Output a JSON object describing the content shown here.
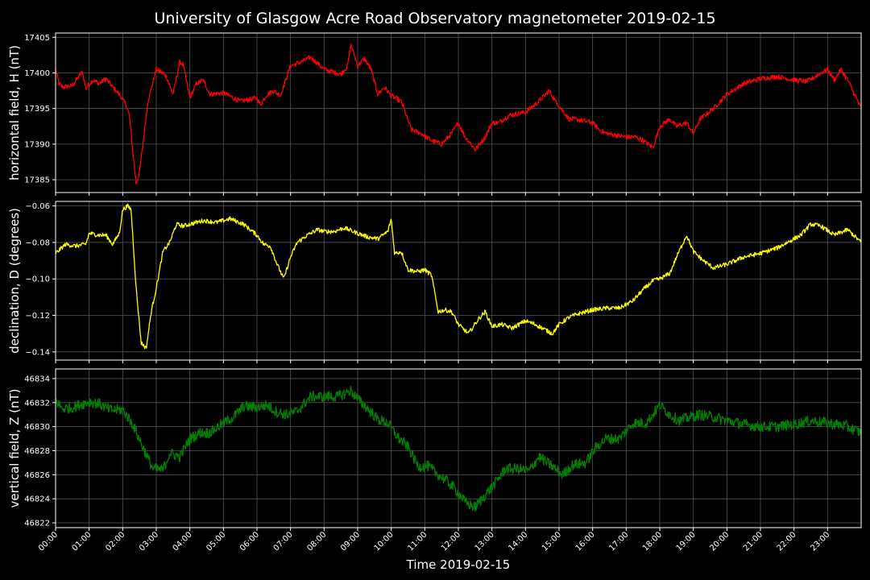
{
  "chart_data": {
    "type": "line",
    "title": "University of Glasgow Acre Road Observatory magnetometer 2019-02-15",
    "xlabel": "Time 2019-02-15",
    "x_unit": "hours since 00:00",
    "xlim": [
      0,
      24
    ],
    "x_tick_labels": [
      "00:00",
      "01:00",
      "02:00",
      "03:00",
      "04:00",
      "05:00",
      "06:00",
      "07:00",
      "08:00",
      "09:00",
      "10:00",
      "11:00",
      "12:00",
      "13:00",
      "14:00",
      "15:00",
      "16:00",
      "17:00",
      "18:00",
      "19:00",
      "20:00",
      "21:00",
      "22:00",
      "23:00"
    ],
    "grid": true,
    "panels": [
      {
        "key": "h",
        "ylabel": "horizontal field, H (nT)",
        "color": "#ff0000",
        "ylim": [
          17383.2,
          17405.6
        ],
        "yticks": [
          17385,
          17390,
          17395,
          17400,
          17405
        ],
        "ytick_labels": [
          "17385",
          "17390",
          "17395",
          "17400",
          "17405"
        ],
        "noise": 0.35,
        "series": {
          "x": [
            0,
            0.1,
            0.2,
            0.5,
            0.8,
            0.9,
            1.1,
            1.3,
            1.5,
            1.7,
            1.9,
            2.1,
            2.2,
            2.3,
            2.4,
            2.5,
            2.6,
            2.75,
            3.0,
            3.2,
            3.3,
            3.5,
            3.7,
            3.8,
            4.0,
            4.2,
            4.4,
            4.6,
            5.0,
            5.5,
            6.0,
            6.1,
            6.3,
            6.5,
            6.7,
            7.0,
            7.3,
            7.6,
            8.0,
            8.5,
            8.7,
            8.8,
            9.0,
            9.2,
            9.4,
            9.6,
            9.8,
            10.0,
            10.3,
            10.6,
            10.9,
            11.2,
            11.5,
            11.8,
            12.0,
            12.2,
            12.3,
            12.5,
            12.8,
            13.0,
            13.2,
            13.5,
            14.0,
            14.4,
            14.7,
            14.9,
            15.3,
            15.5,
            16.0,
            16.2,
            16.4,
            17.0,
            17.3,
            17.5,
            17.8,
            18.0,
            18.3,
            18.5,
            18.8,
            19.0,
            19.2,
            19.6,
            20.0,
            20.5,
            21.0,
            21.5,
            22.0,
            22.4,
            22.8,
            23.0,
            23.2,
            23.4,
            23.6,
            23.8,
            24.0
          ],
          "y": [
            17400.5,
            17398.5,
            17398.0,
            17398.2,
            17400.2,
            17397.8,
            17399.0,
            17398.5,
            17399.2,
            17398.0,
            17397.0,
            17395.5,
            17394.0,
            17389.0,
            17384.5,
            17386.0,
            17390.0,
            17396.0,
            17400.5,
            17400.0,
            17399.5,
            17397.0,
            17401.5,
            17401.2,
            17396.5,
            17398.5,
            17399.0,
            17397.0,
            17397.2,
            17396.0,
            17396.5,
            17395.5,
            17397.0,
            17397.5,
            17396.8,
            17401.0,
            17401.5,
            17402.2,
            17400.5,
            17399.8,
            17401.0,
            17404.0,
            17401.0,
            17402.0,
            17400.5,
            17397.0,
            17398.0,
            17396.8,
            17396.0,
            17392.0,
            17391.5,
            17390.5,
            17390.0,
            17391.5,
            17393.0,
            17391.0,
            17390.5,
            17389.2,
            17391.0,
            17393.0,
            17393.0,
            17394.0,
            17394.5,
            17396.0,
            17397.5,
            17396.0,
            17393.5,
            17393.5,
            17393.0,
            17392.0,
            17391.5,
            17391.0,
            17391.0,
            17390.5,
            17389.5,
            17392.5,
            17393.5,
            17392.5,
            17393.0,
            17391.5,
            17393.5,
            17395.0,
            17397.0,
            17398.5,
            17399.2,
            17399.5,
            17399.0,
            17398.8,
            17400.0,
            17400.5,
            17399.0,
            17400.5,
            17399.0,
            17397.0,
            17395.0
          ]
        }
      },
      {
        "key": "d",
        "ylabel": "declination, D (degrees)",
        "color": "#ffff00",
        "ylim": [
          -0.1445,
          -0.0575
        ],
        "yticks": [
          -0.14,
          -0.12,
          -0.1,
          -0.08,
          -0.06
        ],
        "ytick_labels": [
          "−0.14",
          "−0.12",
          "−0.10",
          "−0.08",
          "−0.06"
        ],
        "noise": 0.0012,
        "series": {
          "x": [
            0,
            0.3,
            0.6,
            0.9,
            1.0,
            1.3,
            1.5,
            1.7,
            1.9,
            2.0,
            2.15,
            2.25,
            2.4,
            2.55,
            2.7,
            2.85,
            3.0,
            3.2,
            3.4,
            3.6,
            3.8,
            4.0,
            4.4,
            4.8,
            5.2,
            5.6,
            6.0,
            6.2,
            6.4,
            6.6,
            6.8,
            7.0,
            7.2,
            7.5,
            7.8,
            8.0,
            8.3,
            8.6,
            9.0,
            9.3,
            9.6,
            9.9,
            10.0,
            10.1,
            10.3,
            10.5,
            10.8,
            11.0,
            11.2,
            11.4,
            11.6,
            11.8,
            12.0,
            12.3,
            12.6,
            12.8,
            13.0,
            13.3,
            13.6,
            14.0,
            14.3,
            14.6,
            14.8,
            15.0,
            15.3,
            15.6,
            16.0,
            16.4,
            16.8,
            17.2,
            17.5,
            17.8,
            18.0,
            18.3,
            18.5,
            18.8,
            19.0,
            19.3,
            19.6,
            20.0,
            20.5,
            21.0,
            21.5,
            22.0,
            22.2,
            22.5,
            22.8,
            23.2,
            23.6,
            24.0
          ],
          "y": [
            -0.086,
            -0.081,
            -0.082,
            -0.081,
            -0.075,
            -0.076,
            -0.076,
            -0.081,
            -0.075,
            -0.062,
            -0.06,
            -0.062,
            -0.105,
            -0.135,
            -0.138,
            -0.118,
            -0.105,
            -0.085,
            -0.08,
            -0.07,
            -0.071,
            -0.07,
            -0.068,
            -0.069,
            -0.067,
            -0.07,
            -0.076,
            -0.081,
            -0.082,
            -0.092,
            -0.1,
            -0.088,
            -0.08,
            -0.076,
            -0.073,
            -0.074,
            -0.074,
            -0.072,
            -0.075,
            -0.077,
            -0.078,
            -0.074,
            -0.067,
            -0.086,
            -0.085,
            -0.095,
            -0.096,
            -0.095,
            -0.098,
            -0.118,
            -0.117,
            -0.118,
            -0.125,
            -0.13,
            -0.122,
            -0.118,
            -0.126,
            -0.125,
            -0.127,
            -0.123,
            -0.125,
            -0.128,
            -0.13,
            -0.125,
            -0.121,
            -0.119,
            -0.117,
            -0.116,
            -0.116,
            -0.112,
            -0.106,
            -0.101,
            -0.1,
            -0.097,
            -0.088,
            -0.076,
            -0.085,
            -0.09,
            -0.094,
            -0.092,
            -0.088,
            -0.086,
            -0.083,
            -0.078,
            -0.076,
            -0.07,
            -0.071,
            -0.076,
            -0.073,
            -0.08
          ]
        }
      },
      {
        "key": "z",
        "ylabel": "vertical field, Z (nT)",
        "color": "#008000",
        "ylim": [
          46821.6,
          46834.8
        ],
        "yticks": [
          46822,
          46824,
          46826,
          46828,
          46830,
          46832,
          46834
        ],
        "ytick_labels": [
          "46822",
          "46824",
          "46826",
          "46828",
          "46830",
          "46832",
          "46834"
        ],
        "noise": 0.45,
        "series": {
          "x": [
            0,
            0.2,
            0.5,
            1.0,
            1.3,
            1.6,
            2.0,
            2.3,
            2.6,
            2.9,
            3.2,
            3.4,
            3.7,
            4.0,
            4.3,
            4.6,
            5.0,
            5.3,
            5.6,
            6.0,
            6.3,
            6.6,
            6.9,
            7.2,
            7.6,
            8.0,
            8.4,
            8.8,
            9.0,
            9.3,
            9.6,
            9.9,
            10.2,
            10.5,
            10.8,
            11.1,
            11.4,
            11.7,
            12.0,
            12.2,
            12.5,
            12.8,
            13.1,
            13.4,
            13.8,
            14.1,
            14.4,
            14.8,
            15.1,
            15.4,
            15.8,
            16.1,
            16.4,
            16.8,
            17.2,
            17.6,
            18.0,
            18.3,
            18.6,
            18.9,
            19.2,
            19.6,
            20.0,
            20.5,
            21.0,
            21.5,
            22.0,
            22.5,
            23.0,
            23.5,
            24.0
          ],
          "y": [
            46832.2,
            46831.5,
            46831.6,
            46832.1,
            46831.9,
            46831.4,
            46831.4,
            46830.2,
            46828.3,
            46826.5,
            46826.4,
            46827.8,
            46827.5,
            46829.0,
            46829.5,
            46829.5,
            46830.3,
            46830.8,
            46831.7,
            46831.6,
            46831.8,
            46831.2,
            46831.0,
            46831.3,
            46832.5,
            46832.5,
            46832.5,
            46833.0,
            46832.3,
            46831.5,
            46830.6,
            46830.3,
            46829.1,
            46828.3,
            46826.7,
            46826.7,
            46826.0,
            46825.4,
            46824.5,
            46823.7,
            46823.3,
            46824.3,
            46825.3,
            46826.5,
            46826.5,
            46826.3,
            46827.5,
            46826.7,
            46826.0,
            46826.8,
            46827.0,
            46828.3,
            46829.0,
            46829.0,
            46830.3,
            46830.3,
            46831.8,
            46831.0,
            46830.5,
            46830.8,
            46831.0,
            46830.8,
            46830.5,
            46830.2,
            46830.0,
            46830.0,
            46830.2,
            46830.5,
            46830.3,
            46830.1,
            46829.5
          ]
        }
      }
    ]
  }
}
